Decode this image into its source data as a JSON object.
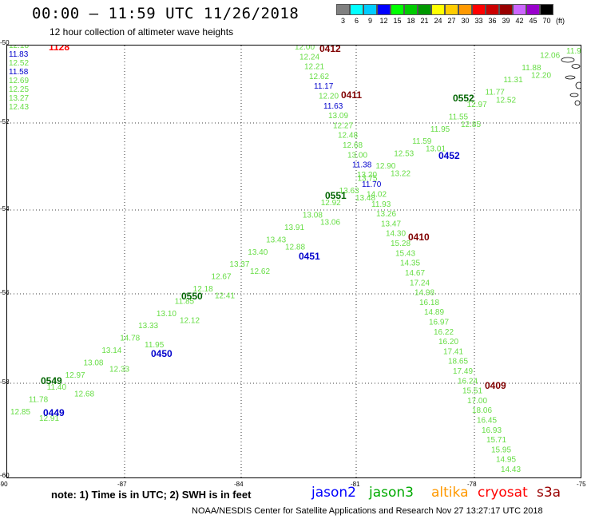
{
  "header": {
    "title": "00:00 – 11:59 UTC 11/26/2018",
    "subtitle": "12 hour collection of altimeter wave heights"
  },
  "colorbar": {
    "labels": [
      "3",
      "6",
      "9",
      "12",
      "15",
      "18",
      "21",
      "24",
      "27",
      "30",
      "33",
      "36",
      "39",
      "42",
      "45",
      "70",
      "(ft)"
    ],
    "colors": [
      "#808080",
      "#00ffff",
      "#00ccff",
      "#0000ff",
      "#00ff00",
      "#00cc00",
      "#009900",
      "#ffff00",
      "#ffcc00",
      "#ff9900",
      "#ff0000",
      "#cc0000",
      "#990000",
      "#cc66ff",
      "#9900cc",
      "#000000"
    ]
  },
  "map": {
    "y_ticks": [
      "-50",
      "-52",
      "-54",
      "-56",
      "-58",
      "-60"
    ],
    "x_ticks": [
      "-90",
      "-87",
      "-84",
      "-81",
      "-78",
      "-75"
    ],
    "time_labels": [
      {
        "text": "1128",
        "color": "#ff0000"
      },
      {
        "text": "0412",
        "color": "#800000"
      },
      {
        "text": "0411",
        "color": "#800000"
      },
      {
        "text": "0410",
        "color": "#800000"
      },
      {
        "text": "0409",
        "color": "#800000"
      },
      {
        "text": "0552",
        "color": "#006400"
      },
      {
        "text": "0551",
        "color": "#006400"
      },
      {
        "text": "0550",
        "color": "#006400"
      },
      {
        "text": "0549",
        "color": "#006400"
      },
      {
        "text": "0452",
        "color": "#0000cc"
      },
      {
        "text": "0451",
        "color": "#0000cc"
      },
      {
        "text": "0450",
        "color": "#0000cc"
      },
      {
        "text": "0449",
        "color": "#0000cc"
      }
    ],
    "readings": {
      "west_track": [
        "12.18",
        "11.83",
        "12.52",
        "11.58",
        "12.69",
        "12.25",
        "13.27",
        "12.43"
      ],
      "cryosat_track": [
        "12.00",
        "12.24",
        "12.21",
        "12.62",
        "11.17",
        "12.20",
        "11.63",
        "13.09",
        "12.27",
        "12.48",
        "12.68",
        "13.00",
        "11.38",
        "13.20",
        "11.70",
        "14.02",
        "11.93",
        "13.26",
        "13.47",
        "14.30",
        "15.28",
        "15.43",
        "14.35",
        "14.67",
        "17.24",
        "14.98",
        "16.18",
        "14.89",
        "16.97",
        "16.22",
        "16.20",
        "17.41",
        "18.65",
        "17.49",
        "16.24",
        "15.51",
        "17.00",
        "18.06",
        "16.45",
        "16.93",
        "15.71",
        "15.95",
        "14.95",
        "14.43"
      ],
      "jason3_track": [
        "12.27",
        "12.06",
        "11.88",
        "11.31",
        "11.77",
        "12.97",
        "11.55",
        "11.95",
        "11.59",
        "12.53",
        "12.90",
        "13.75",
        "13.63",
        "12.92",
        "13.08",
        "13.91",
        "13.43",
        "13.40",
        "13.37",
        "12.67",
        "12.18",
        "11.85",
        "13.10",
        "13.33",
        "14.78",
        "13.14",
        "13.08",
        "12.97",
        "11.40",
        "11.78",
        "12.85"
      ],
      "jason2_track": [
        "11.95",
        "12.20",
        "12.52",
        "12.85",
        "13.01",
        "13.22",
        "13.48",
        "13.06",
        "12.88",
        "12.62",
        "12.41",
        "12.12",
        "11.95",
        "12.33",
        "12.68",
        "12.91"
      ]
    }
  },
  "note": "note:  1) Time is in UTC;  2) SWH is in feet",
  "legend": [
    {
      "name": "jason2",
      "color": "#0000ff"
    },
    {
      "name": "jason3",
      "color": "#00aa00"
    },
    {
      "name": "altika",
      "color": "#ff9900"
    },
    {
      "name": "cryosat",
      "color": "#ff0000"
    },
    {
      "name": "s3a",
      "color": "#990000"
    }
  ],
  "credit": "NOAA/NESDIS Center for Satellite Applications and Research    Nov 27 13:27:17 UTC 2018"
}
